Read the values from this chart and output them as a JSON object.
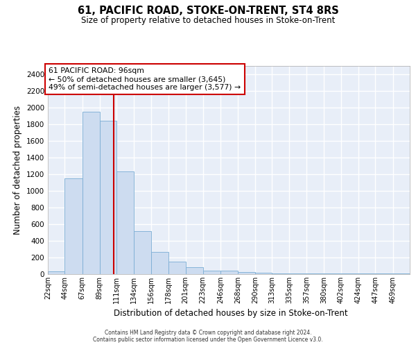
{
  "title": "61, PACIFIC ROAD, STOKE-ON-TRENT, ST4 8RS",
  "subtitle": "Size of property relative to detached houses in Stoke-on-Trent",
  "xlabel": "Distribution of detached houses by size in Stoke-on-Trent",
  "ylabel": "Number of detached properties",
  "bin_labels": [
    "22sqm",
    "44sqm",
    "67sqm",
    "89sqm",
    "111sqm",
    "134sqm",
    "156sqm",
    "178sqm",
    "201sqm",
    "223sqm",
    "246sqm",
    "268sqm",
    "290sqm",
    "313sqm",
    "335sqm",
    "357sqm",
    "380sqm",
    "402sqm",
    "424sqm",
    "447sqm",
    "469sqm"
  ],
  "bin_edges": [
    11,
    33,
    55.5,
    78,
    100,
    122.5,
    145,
    167,
    189.5,
    212,
    234.5,
    257,
    279.5,
    301.5,
    324,
    346,
    368.5,
    391,
    413.5,
    435.5,
    458,
    480
  ],
  "bar_heights": [
    30,
    1150,
    1950,
    1840,
    1230,
    520,
    270,
    150,
    80,
    45,
    40,
    25,
    15,
    10,
    10,
    5,
    5,
    5,
    5,
    5,
    5
  ],
  "bar_color": "#cddcf0",
  "bar_edge_color": "#7aadd4",
  "red_line_x": 96,
  "red_line_color": "#cc0000",
  "annotation_line1": "61 PACIFIC ROAD: 96sqm",
  "annotation_line2": "← 50% of detached houses are smaller (3,645)",
  "annotation_line3": "49% of semi-detached houses are larger (3,577) →",
  "annotation_box_color": "white",
  "annotation_box_edge": "#cc0000",
  "ylim": [
    0,
    2500
  ],
  "yticks": [
    0,
    200,
    400,
    600,
    800,
    1000,
    1200,
    1400,
    1600,
    1800,
    2000,
    2200,
    2400
  ],
  "bg_color": "#e8eef8",
  "grid_color": "white",
  "footer_line1": "Contains HM Land Registry data © Crown copyright and database right 2024.",
  "footer_line2": "Contains public sector information licensed under the Open Government Licence v3.0."
}
